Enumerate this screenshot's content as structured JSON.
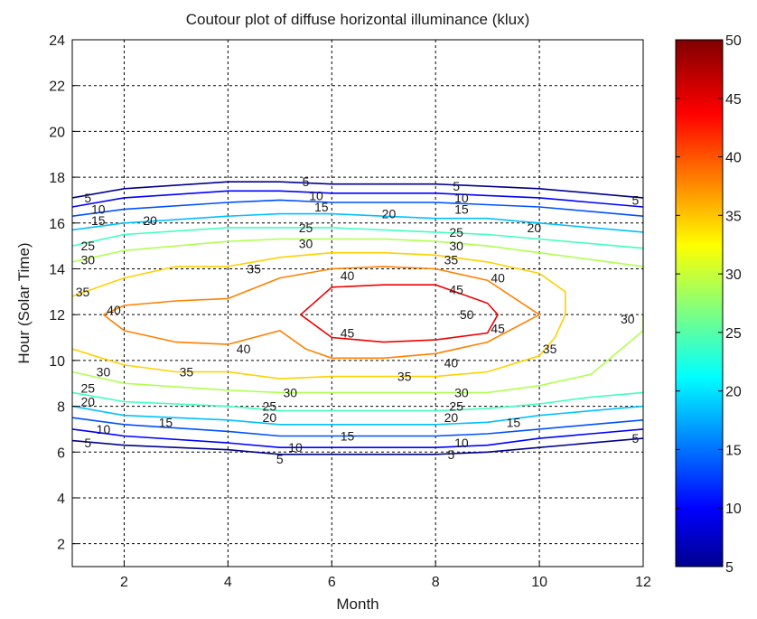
{
  "chart_data": {
    "type": "contour",
    "title": "Coutour plot of diffuse horizontal illuminance (klux)",
    "xlabel": "Month",
    "ylabel": "Hour (Solar Time)",
    "xlim": [
      1,
      12
    ],
    "ylim": [
      1,
      24
    ],
    "xticks": [
      2,
      4,
      6,
      8,
      10,
      12
    ],
    "yticks": [
      2,
      4,
      6,
      8,
      10,
      12,
      14,
      16,
      18,
      20,
      22,
      24
    ],
    "grid": true,
    "grid_style": "dashed",
    "colormap": "jet",
    "colorbar": {
      "min": 5,
      "max": 50,
      "ticks": [
        5,
        10,
        15,
        20,
        25,
        30,
        35,
        40,
        45,
        50
      ]
    },
    "contour_levels": [
      5,
      10,
      15,
      20,
      25,
      30,
      35,
      40,
      45
    ],
    "levels": [
      {
        "level": 5,
        "color": "#00008f",
        "lines": [
          [
            [
              1,
              17.1
            ],
            [
              2,
              17.5
            ],
            [
              4,
              17.8
            ],
            [
              5,
              17.8
            ],
            [
              6,
              17.7
            ],
            [
              7,
              17.7
            ],
            [
              8,
              17.7
            ],
            [
              9,
              17.6
            ],
            [
              10,
              17.5
            ],
            [
              11,
              17.3
            ],
            [
              12,
              17.1
            ]
          ],
          [
            [
              1,
              6.5
            ],
            [
              2,
              6.3
            ],
            [
              4,
              6.1
            ],
            [
              5,
              5.9
            ],
            [
              6,
              5.9
            ],
            [
              7,
              5.9
            ],
            [
              8,
              5.9
            ],
            [
              9,
              6.0
            ],
            [
              10,
              6.2
            ],
            [
              11,
              6.4
            ],
            [
              12,
              6.6
            ]
          ]
        ]
      },
      {
        "level": 10,
        "color": "#0000ff",
        "lines": [
          [
            [
              1,
              16.7
            ],
            [
              2,
              17.1
            ],
            [
              4,
              17.4
            ],
            [
              5,
              17.4
            ],
            [
              6,
              17.3
            ],
            [
              7,
              17.3
            ],
            [
              8,
              17.3
            ],
            [
              9,
              17.2
            ],
            [
              10,
              17.1
            ],
            [
              11,
              16.9
            ],
            [
              12,
              16.7
            ]
          ],
          [
            [
              1,
              7.0
            ],
            [
              2,
              6.7
            ],
            [
              4,
              6.4
            ],
            [
              5,
              6.2
            ],
            [
              6,
              6.2
            ],
            [
              7,
              6.2
            ],
            [
              8,
              6.2
            ],
            [
              9,
              6.3
            ],
            [
              10,
              6.6
            ],
            [
              11,
              6.8
            ],
            [
              12,
              7.0
            ]
          ]
        ]
      },
      {
        "level": 15,
        "color": "#0050ff",
        "lines": [
          [
            [
              1,
              16.3
            ],
            [
              2,
              16.6
            ],
            [
              4,
              16.9
            ],
            [
              5,
              17.0
            ],
            [
              6,
              16.9
            ],
            [
              7,
              16.9
            ],
            [
              8,
              16.9
            ],
            [
              9,
              16.8
            ],
            [
              10,
              16.7
            ],
            [
              11,
              16.5
            ],
            [
              12,
              16.3
            ]
          ],
          [
            [
              1,
              7.5
            ],
            [
              2,
              7.2
            ],
            [
              4,
              6.9
            ],
            [
              5,
              6.7
            ],
            [
              6,
              6.7
            ],
            [
              7,
              6.7
            ],
            [
              8,
              6.7
            ],
            [
              9,
              6.8
            ],
            [
              10,
              7.0
            ],
            [
              11,
              7.2
            ],
            [
              12,
              7.4
            ]
          ]
        ]
      },
      {
        "level": 20,
        "color": "#00c0ff",
        "lines": [
          [
            [
              1,
              15.7
            ],
            [
              2,
              16.0
            ],
            [
              4,
              16.3
            ],
            [
              5,
              16.4
            ],
            [
              6,
              16.4
            ],
            [
              7,
              16.3
            ],
            [
              8,
              16.2
            ],
            [
              9,
              16.2
            ],
            [
              10,
              16.0
            ],
            [
              11,
              15.8
            ],
            [
              12,
              15.6
            ]
          ],
          [
            [
              1,
              8.0
            ],
            [
              2,
              7.6
            ],
            [
              4,
              7.4
            ],
            [
              5,
              7.2
            ],
            [
              6,
              7.2
            ],
            [
              7,
              7.2
            ],
            [
              8,
              7.2
            ],
            [
              9,
              7.3
            ],
            [
              10,
              7.6
            ],
            [
              11,
              7.8
            ],
            [
              12,
              8.0
            ]
          ]
        ]
      },
      {
        "level": 25,
        "color": "#40ffbf",
        "lines": [
          [
            [
              1,
              15.0
            ],
            [
              2,
              15.5
            ],
            [
              4,
              15.8
            ],
            [
              5,
              15.8
            ],
            [
              6,
              15.8
            ],
            [
              7,
              15.7
            ],
            [
              8,
              15.6
            ],
            [
              9,
              15.5
            ],
            [
              10,
              15.3
            ],
            [
              11,
              15.1
            ],
            [
              12,
              14.9
            ]
          ],
          [
            [
              1,
              8.6
            ],
            [
              2,
              8.2
            ],
            [
              4,
              8.0
            ],
            [
              5,
              7.8
            ],
            [
              6,
              7.8
            ],
            [
              7,
              7.8
            ],
            [
              8,
              7.8
            ],
            [
              9,
              7.9
            ],
            [
              10,
              8.1
            ],
            [
              11,
              8.4
            ],
            [
              12,
              8.6
            ]
          ]
        ]
      },
      {
        "level": 30,
        "color": "#b0ff50",
        "lines": [
          [
            [
              1,
              14.3
            ],
            [
              2,
              14.8
            ],
            [
              4,
              15.2
            ],
            [
              5,
              15.3
            ],
            [
              6,
              15.3
            ],
            [
              7,
              15.3
            ],
            [
              8,
              15.2
            ],
            [
              9,
              15.0
            ],
            [
              10,
              14.7
            ],
            [
              11,
              14.4
            ],
            [
              12,
              14.1
            ]
          ],
          [
            [
              1,
              9.5
            ],
            [
              2,
              9.0
            ],
            [
              4,
              8.7
            ],
            [
              5,
              8.6
            ],
            [
              6,
              8.6
            ],
            [
              7,
              8.6
            ],
            [
              8,
              8.6
            ],
            [
              9,
              8.6
            ],
            [
              10,
              8.9
            ],
            [
              11,
              9.4
            ],
            [
              12,
              11.3
            ],
            [
              12,
              12.0
            ]
          ]
        ]
      },
      {
        "level": 35,
        "color": "#ffd000",
        "lines": [
          [
            [
              1,
              12.8
            ],
            [
              2,
              13.6
            ],
            [
              3,
              14.1
            ],
            [
              4,
              14.1
            ],
            [
              5,
              14.5
            ],
            [
              6,
              14.7
            ],
            [
              7,
              14.7
            ],
            [
              8,
              14.6
            ],
            [
              9,
              14.3
            ],
            [
              10,
              13.8
            ],
            [
              10.5,
              13.0
            ],
            [
              10.5,
              12.0
            ],
            [
              10.3,
              11.0
            ],
            [
              10,
              10.2
            ],
            [
              9,
              9.5
            ],
            [
              8,
              9.3
            ],
            [
              7,
              9.3
            ],
            [
              6,
              9.3
            ],
            [
              5,
              9.2
            ],
            [
              4,
              9.5
            ],
            [
              3,
              9.5
            ],
            [
              2,
              9.8
            ],
            [
              1,
              10.5
            ]
          ]
        ]
      },
      {
        "level": 40,
        "color": "#ff8000",
        "lines": [
          [
            [
              1.6,
              12.0
            ],
            [
              2,
              12.4
            ],
            [
              3,
              12.6
            ],
            [
              4,
              12.7
            ],
            [
              5,
              13.6
            ],
            [
              6,
              14.0
            ],
            [
              7,
              14.1
            ],
            [
              8,
              14.0
            ],
            [
              9,
              13.5
            ],
            [
              10,
              12.0
            ],
            [
              9,
              10.8
            ],
            [
              8,
              10.3
            ],
            [
              7,
              10.1
            ],
            [
              6,
              10.1
            ],
            [
              5.5,
              10.5
            ],
            [
              5,
              11.3
            ],
            [
              4,
              10.7
            ],
            [
              3,
              10.8
            ],
            [
              2,
              11.3
            ],
            [
              1.6,
              12.0
            ]
          ]
        ]
      },
      {
        "level": 45,
        "color": "#ee0000",
        "lines": [
          [
            [
              5.4,
              12.0
            ],
            [
              6,
              13.2
            ],
            [
              7,
              13.3
            ],
            [
              8,
              13.3
            ],
            [
              9,
              12.5
            ],
            [
              9.2,
              12.0
            ],
            [
              9,
              11.2
            ],
            [
              8,
              10.9
            ],
            [
              7,
              10.8
            ],
            [
              6,
              11.0
            ],
            [
              5.4,
              12.0
            ]
          ]
        ]
      }
    ],
    "labels": [
      {
        "x": 1.3,
        "y": 17.1,
        "text": "5"
      },
      {
        "x": 5.5,
        "y": 17.8,
        "text": "5"
      },
      {
        "x": 8.4,
        "y": 17.6,
        "text": "5"
      },
      {
        "x": 11.85,
        "y": 17.0,
        "text": "5"
      },
      {
        "x": 1.5,
        "y": 16.6,
        "text": "10"
      },
      {
        "x": 5.7,
        "y": 17.2,
        "text": "10"
      },
      {
        "x": 8.5,
        "y": 17.1,
        "text": "10"
      },
      {
        "x": 1.5,
        "y": 16.1,
        "text": "15"
      },
      {
        "x": 5.8,
        "y": 16.7,
        "text": "15"
      },
      {
        "x": 8.5,
        "y": 16.6,
        "text": "15"
      },
      {
        "x": 2.5,
        "y": 16.1,
        "text": "20"
      },
      {
        "x": 7.1,
        "y": 16.4,
        "text": "20"
      },
      {
        "x": 9.9,
        "y": 15.8,
        "text": "20"
      },
      {
        "x": 1.3,
        "y": 15.0,
        "text": "25"
      },
      {
        "x": 5.5,
        "y": 15.8,
        "text": "25"
      },
      {
        "x": 8.4,
        "y": 15.6,
        "text": "25"
      },
      {
        "x": 1.3,
        "y": 14.4,
        "text": "30"
      },
      {
        "x": 5.5,
        "y": 15.1,
        "text": "30"
      },
      {
        "x": 8.4,
        "y": 15.0,
        "text": "30"
      },
      {
        "x": 1.2,
        "y": 13.0,
        "text": "35"
      },
      {
        "x": 4.5,
        "y": 14.0,
        "text": "35"
      },
      {
        "x": 8.3,
        "y": 14.4,
        "text": "35"
      },
      {
        "x": 1.8,
        "y": 12.2,
        "text": "40"
      },
      {
        "x": 6.3,
        "y": 13.7,
        "text": "40"
      },
      {
        "x": 9.2,
        "y": 13.6,
        "text": "40"
      },
      {
        "x": 8.4,
        "y": 13.1,
        "text": "45"
      },
      {
        "x": 6.3,
        "y": 11.2,
        "text": "45"
      },
      {
        "x": 9.2,
        "y": 11.4,
        "text": "45"
      },
      {
        "x": 8.6,
        "y": 12.0,
        "text": "50"
      },
      {
        "x": 4.3,
        "y": 10.5,
        "text": "40"
      },
      {
        "x": 8.3,
        "y": 9.9,
        "text": "40"
      },
      {
        "x": 3.2,
        "y": 9.5,
        "text": "35"
      },
      {
        "x": 7.4,
        "y": 9.3,
        "text": "35"
      },
      {
        "x": 10.2,
        "y": 10.5,
        "text": "35"
      },
      {
        "x": 11.7,
        "y": 11.8,
        "text": "30"
      },
      {
        "x": 1.6,
        "y": 9.5,
        "text": "30"
      },
      {
        "x": 5.2,
        "y": 8.6,
        "text": "30"
      },
      {
        "x": 8.5,
        "y": 8.6,
        "text": "30"
      },
      {
        "x": 1.3,
        "y": 8.8,
        "text": "25"
      },
      {
        "x": 4.8,
        "y": 8.0,
        "text": "25"
      },
      {
        "x": 8.4,
        "y": 8.0,
        "text": "25"
      },
      {
        "x": 1.3,
        "y": 8.2,
        "text": "20"
      },
      {
        "x": 4.8,
        "y": 7.5,
        "text": "20"
      },
      {
        "x": 8.3,
        "y": 7.5,
        "text": "20"
      },
      {
        "x": 2.8,
        "y": 7.3,
        "text": "15"
      },
      {
        "x": 6.3,
        "y": 6.7,
        "text": "15"
      },
      {
        "x": 9.5,
        "y": 7.3,
        "text": "15"
      },
      {
        "x": 1.6,
        "y": 7.0,
        "text": "10"
      },
      {
        "x": 5.3,
        "y": 6.2,
        "text": "10"
      },
      {
        "x": 8.5,
        "y": 6.4,
        "text": "10"
      },
      {
        "x": 1.3,
        "y": 6.4,
        "text": "5"
      },
      {
        "x": 5.0,
        "y": 5.7,
        "text": "5"
      },
      {
        "x": 8.3,
        "y": 5.9,
        "text": "5"
      },
      {
        "x": 11.85,
        "y": 6.6,
        "text": "5"
      }
    ]
  }
}
